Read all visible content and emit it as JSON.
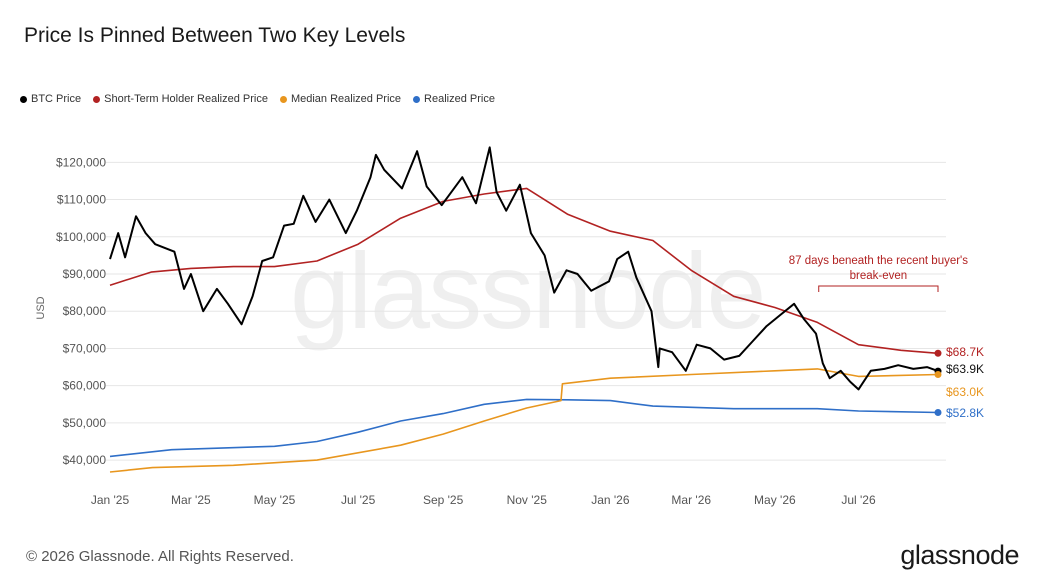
{
  "title": "Price Is Pinned Between Two Key Levels",
  "footer": "© 2026 Glassnode. All Rights Reserved.",
  "brand": "glassnode",
  "watermark": "glassnode",
  "chart_data": {
    "type": "line",
    "ylabel": "USD",
    "ylim": [
      36000,
      126000
    ],
    "yticks": [
      40000,
      50000,
      60000,
      70000,
      80000,
      90000,
      100000,
      110000,
      120000
    ],
    "ytick_labels": [
      "$40,000",
      "$50,000",
      "$60,000",
      "$70,000",
      "$80,000",
      "$90,000",
      "$100,000",
      "$110,000",
      "$120,000"
    ],
    "xrange": [
      "2025-01-01",
      "2026-08-28"
    ],
    "xticks": [
      "2025-01-01",
      "2025-03-01",
      "2025-05-01",
      "2025-07-01",
      "2025-09-01",
      "2025-11-01",
      "2026-01-01",
      "2026-03-01",
      "2026-05-01",
      "2026-07-01"
    ],
    "xtick_labels": [
      "Jan '25",
      "Mar '25",
      "May '25",
      "Jul '25",
      "Sep '25",
      "Nov '25",
      "Jan '26",
      "Mar '26",
      "May '26",
      "Jul '26"
    ],
    "legend_position": "top-left",
    "grid": "horizontal",
    "series": [
      {
        "name": "BTC Price",
        "color": "#000000",
        "end_label": "$63.9K",
        "points": [
          [
            "2025-01-01",
            94000
          ],
          [
            "2025-01-07",
            101000
          ],
          [
            "2025-01-12",
            94500
          ],
          [
            "2025-01-20",
            105500
          ],
          [
            "2025-01-27",
            101000
          ],
          [
            "2025-02-03",
            98000
          ],
          [
            "2025-02-10",
            97000
          ],
          [
            "2025-02-17",
            96000
          ],
          [
            "2025-02-24",
            86000
          ],
          [
            "2025-03-01",
            90000
          ],
          [
            "2025-03-10",
            80000
          ],
          [
            "2025-03-20",
            86000
          ],
          [
            "2025-03-28",
            82000
          ],
          [
            "2025-04-07",
            76500
          ],
          [
            "2025-04-15",
            84000
          ],
          [
            "2025-04-22",
            93500
          ],
          [
            "2025-04-30",
            94500
          ],
          [
            "2025-05-08",
            103000
          ],
          [
            "2025-05-15",
            103500
          ],
          [
            "2025-05-22",
            111000
          ],
          [
            "2025-05-31",
            104000
          ],
          [
            "2025-06-10",
            110000
          ],
          [
            "2025-06-22",
            101000
          ],
          [
            "2025-06-30",
            107000
          ],
          [
            "2025-07-10",
            116000
          ],
          [
            "2025-07-14",
            122000
          ],
          [
            "2025-07-20",
            118000
          ],
          [
            "2025-08-02",
            113000
          ],
          [
            "2025-08-13",
            123000
          ],
          [
            "2025-08-20",
            113500
          ],
          [
            "2025-08-31",
            108500
          ],
          [
            "2025-09-05",
            111000
          ],
          [
            "2025-09-15",
            116000
          ],
          [
            "2025-09-25",
            109000
          ],
          [
            "2025-10-05",
            124000
          ],
          [
            "2025-10-10",
            112000
          ],
          [
            "2025-10-17",
            107000
          ],
          [
            "2025-10-27",
            114000
          ],
          [
            "2025-11-04",
            101000
          ],
          [
            "2025-11-14",
            95000
          ],
          [
            "2025-11-21",
            85000
          ],
          [
            "2025-11-30",
            91000
          ],
          [
            "2025-12-08",
            90000
          ],
          [
            "2025-12-18",
            85500
          ],
          [
            "2025-12-31",
            88000
          ],
          [
            "2026-01-06",
            94000
          ],
          [
            "2026-01-14",
            96000
          ],
          [
            "2026-01-20",
            89000
          ],
          [
            "2026-01-31",
            80000
          ],
          [
            "2026-02-05",
            65000
          ],
          [
            "2026-02-06",
            70000
          ],
          [
            "2026-02-15",
            69000
          ],
          [
            "2026-02-25",
            64000
          ],
          [
            "2026-03-05",
            71000
          ],
          [
            "2026-03-15",
            70000
          ],
          [
            "2026-03-25",
            67000
          ],
          [
            "2026-04-05",
            68000
          ],
          [
            "2026-04-15",
            72000
          ],
          [
            "2026-04-25",
            76000
          ],
          [
            "2026-05-05",
            79000
          ],
          [
            "2026-05-15",
            82000
          ],
          [
            "2026-05-22",
            78000
          ],
          [
            "2026-05-31",
            74000
          ],
          [
            "2026-06-05",
            66000
          ],
          [
            "2026-06-10",
            62000
          ],
          [
            "2026-06-18",
            64000
          ],
          [
            "2026-06-25",
            61000
          ],
          [
            "2026-07-01",
            59000
          ],
          [
            "2026-07-10",
            64000
          ],
          [
            "2026-07-20",
            64500
          ],
          [
            "2026-07-30",
            65500
          ],
          [
            "2026-08-10",
            64500
          ],
          [
            "2026-08-20",
            65000
          ],
          [
            "2026-08-28",
            63900
          ]
        ]
      },
      {
        "name": "Short-Term Holder Realized Price",
        "color": "#b22222",
        "end_label": "$68.7K",
        "points": [
          [
            "2025-01-01",
            87000
          ],
          [
            "2025-01-31",
            90500
          ],
          [
            "2025-03-01",
            91500
          ],
          [
            "2025-04-01",
            92000
          ],
          [
            "2025-05-01",
            92000
          ],
          [
            "2025-06-01",
            93500
          ],
          [
            "2025-07-01",
            98000
          ],
          [
            "2025-08-01",
            105000
          ],
          [
            "2025-09-01",
            109500
          ],
          [
            "2025-10-01",
            111500
          ],
          [
            "2025-11-01",
            113000
          ],
          [
            "2025-12-01",
            106000
          ],
          [
            "2026-01-01",
            101500
          ],
          [
            "2026-02-01",
            99000
          ],
          [
            "2026-03-01",
            91000
          ],
          [
            "2026-04-01",
            84000
          ],
          [
            "2026-05-01",
            81000
          ],
          [
            "2026-06-01",
            77000
          ],
          [
            "2026-07-01",
            71000
          ],
          [
            "2026-08-01",
            69500
          ],
          [
            "2026-08-28",
            68700
          ]
        ]
      },
      {
        "name": "Median Realized Price",
        "color": "#e8961e",
        "end_label": "$63.0K",
        "points": [
          [
            "2025-01-01",
            36800
          ],
          [
            "2025-02-01",
            38000
          ],
          [
            "2025-04-01",
            38600
          ],
          [
            "2025-06-01",
            40000
          ],
          [
            "2025-08-01",
            44000
          ],
          [
            "2025-09-01",
            47000
          ],
          [
            "2025-10-01",
            50500
          ],
          [
            "2025-11-01",
            54000
          ],
          [
            "2025-11-26",
            56000
          ],
          [
            "2025-11-27",
            60500
          ],
          [
            "2026-01-01",
            62000
          ],
          [
            "2026-03-01",
            63000
          ],
          [
            "2026-05-01",
            64000
          ],
          [
            "2026-06-01",
            64500
          ],
          [
            "2026-07-01",
            62500
          ],
          [
            "2026-08-28",
            63000
          ]
        ]
      },
      {
        "name": "Realized Price",
        "color": "#2f6fc8",
        "end_label": "$52.8K",
        "points": [
          [
            "2025-01-01",
            41000
          ],
          [
            "2025-02-15",
            42800
          ],
          [
            "2025-05-01",
            43700
          ],
          [
            "2025-06-01",
            45000
          ],
          [
            "2025-07-01",
            47500
          ],
          [
            "2025-08-01",
            50500
          ],
          [
            "2025-09-01",
            52500
          ],
          [
            "2025-10-01",
            55000
          ],
          [
            "2025-11-01",
            56300
          ],
          [
            "2025-12-01",
            56200
          ],
          [
            "2026-01-01",
            56000
          ],
          [
            "2026-02-01",
            54500
          ],
          [
            "2026-04-01",
            53800
          ],
          [
            "2026-06-01",
            53800
          ],
          [
            "2026-07-01",
            53200
          ],
          [
            "2026-08-28",
            52800
          ]
        ]
      }
    ],
    "annotation": {
      "text_line1": "87 days beneath the recent buyer's",
      "text_line2": "break-even",
      "color": "#b22222",
      "x_start": "2026-06-02",
      "x_end": "2026-08-28"
    }
  }
}
